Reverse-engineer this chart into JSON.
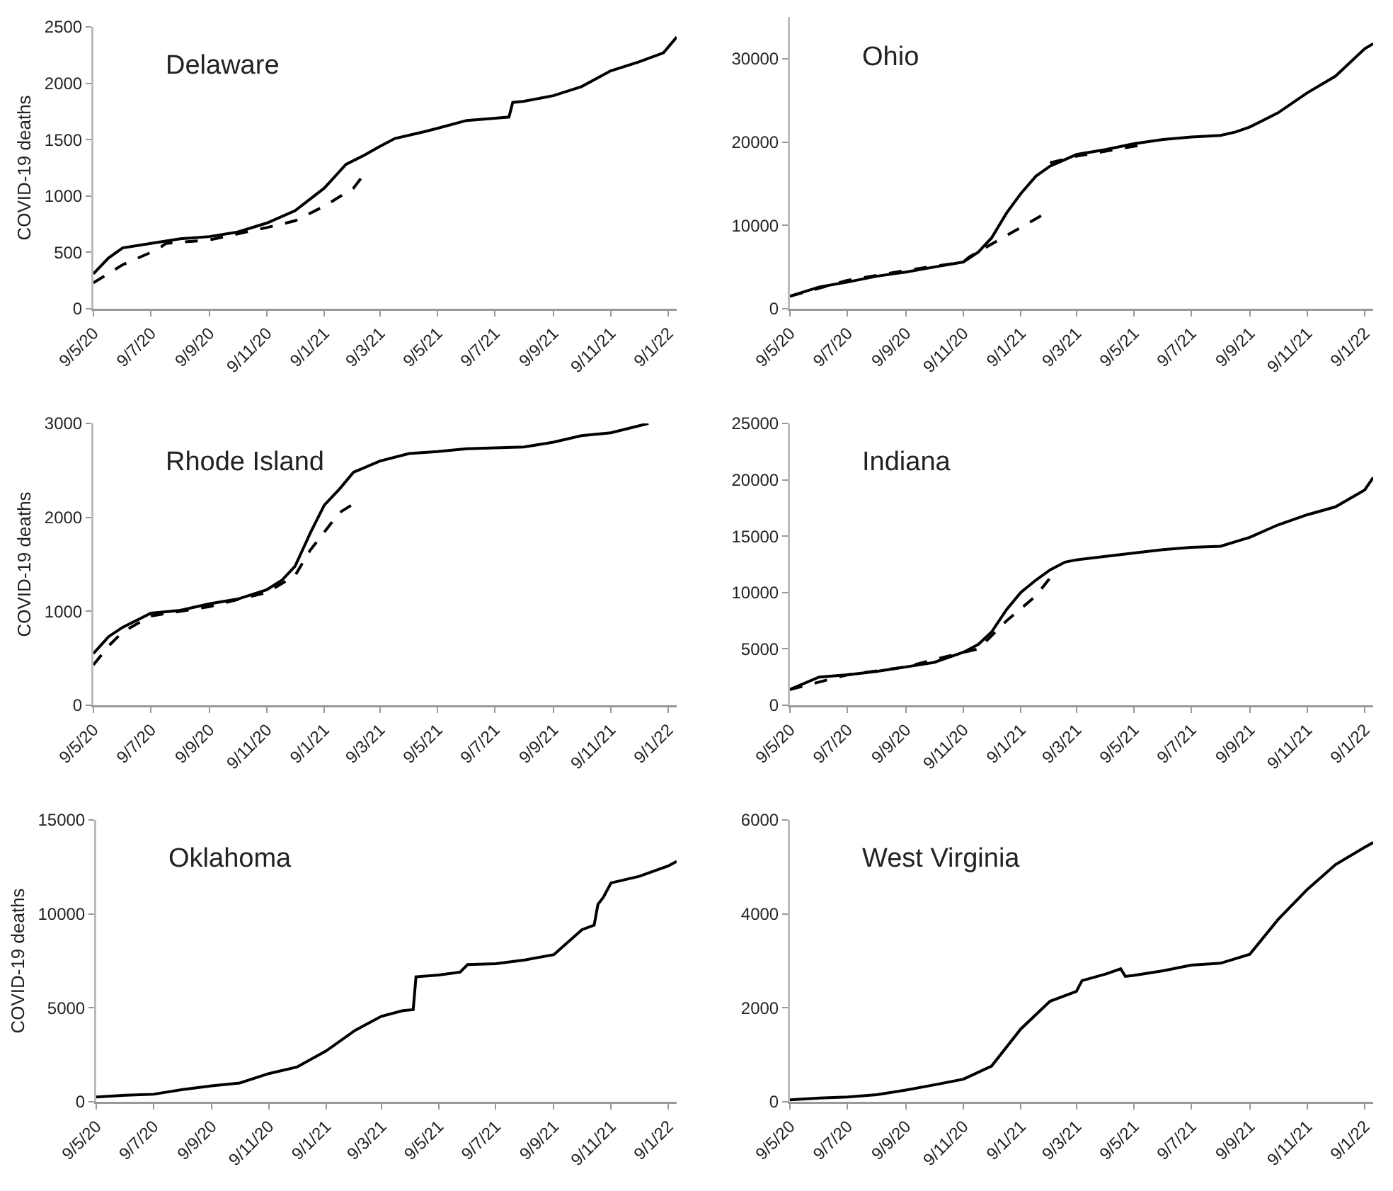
{
  "chart_data": [
    {
      "type": "line",
      "title": "Delaware",
      "ylabel": "COVID-19 deaths",
      "xlim": [
        "2020-05-09",
        "2022-01-18"
      ],
      "xticks": [
        {
          "value": "2020-05-09",
          "label": "9/5/20"
        },
        {
          "value": "2020-07-09",
          "label": "9/7/20"
        },
        {
          "value": "2020-09-09",
          "label": "9/9/20"
        },
        {
          "value": "2020-11-09",
          "label": "9/11/20"
        },
        {
          "value": "2021-01-09",
          "label": "9/1/21"
        },
        {
          "value": "2021-03-09",
          "label": "9/3/21"
        },
        {
          "value": "2021-05-09",
          "label": "9/5/21"
        },
        {
          "value": "2021-07-09",
          "label": "9/7/21"
        },
        {
          "value": "2021-09-09",
          "label": "9/9/21"
        },
        {
          "value": "2021-11-09",
          "label": "9/11/21"
        },
        {
          "value": "2022-01-09",
          "label": "9/1/22"
        }
      ],
      "ylim": [
        0,
        2500
      ],
      "yticks": [
        0,
        500,
        1000,
        1500,
        2000,
        2500
      ],
      "grid": false,
      "marker": "none",
      "series": [
        {
          "color": "#000000",
          "line_style": "solid",
          "x": [
            "2020-05-09",
            "2020-05-25",
            "2020-06-09",
            "2020-07-09",
            "2020-08-09",
            "2020-09-09",
            "2020-10-09",
            "2020-11-09",
            "2020-12-09",
            "2021-01-09",
            "2021-02-01",
            "2021-02-20",
            "2021-03-09",
            "2021-03-25",
            "2021-04-25",
            "2021-05-09",
            "2021-06-09",
            "2021-07-09",
            "2021-07-24",
            "2021-07-28",
            "2021-08-09",
            "2021-09-09",
            "2021-10-09",
            "2021-11-09",
            "2021-12-09",
            "2022-01-04",
            "2022-01-18"
          ],
          "values": [
            310,
            450,
            540,
            580,
            620,
            640,
            680,
            760,
            870,
            1070,
            1280,
            1360,
            1440,
            1510,
            1570,
            1600,
            1670,
            1690,
            1700,
            1830,
            1840,
            1890,
            1970,
            2110,
            2190,
            2270,
            2410
          ]
        },
        {
          "color": "#000000",
          "line_style": "dashed",
          "x": [
            "2020-05-09",
            "2020-06-09",
            "2020-07-09",
            "2020-07-20",
            "2020-07-25",
            "2020-09-09",
            "2020-11-09",
            "2020-12-09",
            "2021-01-09",
            "2021-02-09",
            "2021-02-20"
          ],
          "values": [
            230,
            390,
            500,
            550,
            580,
            610,
            720,
            780,
            910,
            1070,
            1190
          ]
        }
      ]
    },
    {
      "type": "line",
      "title": "Ohio",
      "xlim": [
        "2020-05-09",
        "2022-01-18"
      ],
      "xticks": [
        {
          "value": "2020-05-09",
          "label": "9/5/20"
        },
        {
          "value": "2020-07-09",
          "label": "9/7/20"
        },
        {
          "value": "2020-09-09",
          "label": "9/9/20"
        },
        {
          "value": "2020-11-09",
          "label": "9/11/20"
        },
        {
          "value": "2021-01-09",
          "label": "9/1/21"
        },
        {
          "value": "2021-03-09",
          "label": "9/3/21"
        },
        {
          "value": "2021-05-09",
          "label": "9/5/21"
        },
        {
          "value": "2021-07-09",
          "label": "9/7/21"
        },
        {
          "value": "2021-09-09",
          "label": "9/9/21"
        },
        {
          "value": "2021-11-09",
          "label": "9/11/21"
        },
        {
          "value": "2022-01-09",
          "label": "9/1/22"
        }
      ],
      "ylim": [
        0,
        35000
      ],
      "yticks": [
        0,
        10000,
        20000,
        30000
      ],
      "grid": false,
      "marker": "none",
      "series": [
        {
          "color": "#000000",
          "line_style": "solid",
          "x": [
            "2020-05-09",
            "2020-06-09",
            "2020-07-09",
            "2020-08-09",
            "2020-09-09",
            "2020-10-09",
            "2020-11-09",
            "2020-11-25",
            "2020-12-09",
            "2020-12-25",
            "2021-01-09",
            "2021-01-25",
            "2021-02-09",
            "2021-02-25",
            "2021-03-09",
            "2021-04-09",
            "2021-05-09",
            "2021-06-09",
            "2021-07-09",
            "2021-08-09",
            "2021-08-25",
            "2021-09-09",
            "2021-10-09",
            "2021-11-09",
            "2021-12-09",
            "2022-01-09",
            "2022-01-18"
          ],
          "values": [
            1500,
            2600,
            3200,
            3900,
            4400,
            5000,
            5600,
            6800,
            8500,
            11500,
            13800,
            15900,
            17100,
            17900,
            18500,
            19100,
            19800,
            20300,
            20600,
            20800,
            21200,
            21800,
            23500,
            25900,
            27900,
            31200,
            31800
          ]
        },
        {
          "color": "#000000",
          "line_style": "dashed",
          "x": [
            "2020-05-09",
            "2020-07-09",
            "2020-09-09",
            "2020-11-09",
            "2020-11-15",
            "2021-02-05"
          ],
          "values": [
            1500,
            3400,
            4600,
            5600,
            6200,
            11500
          ]
        },
        {
          "color": "#000000",
          "line_style": "dashed",
          "x": [
            "2021-02-09",
            "2021-03-09",
            "2021-04-09",
            "2021-05-15"
          ],
          "values": [
            17500,
            18300,
            18900,
            19600
          ]
        }
      ]
    },
    {
      "type": "line",
      "title": "Rhode Island",
      "ylabel": "COVID-19 deaths",
      "xlim": [
        "2020-05-09",
        "2022-01-18"
      ],
      "xticks": [
        {
          "value": "2020-05-09",
          "label": "9/5/20"
        },
        {
          "value": "2020-07-09",
          "label": "9/7/20"
        },
        {
          "value": "2020-09-09",
          "label": "9/9/20"
        },
        {
          "value": "2020-11-09",
          "label": "9/11/20"
        },
        {
          "value": "2021-01-09",
          "label": "9/1/21"
        },
        {
          "value": "2021-03-09",
          "label": "9/3/21"
        },
        {
          "value": "2021-05-09",
          "label": "9/5/21"
        },
        {
          "value": "2021-07-09",
          "label": "9/7/21"
        },
        {
          "value": "2021-09-09",
          "label": "9/9/21"
        },
        {
          "value": "2021-11-09",
          "label": "9/11/21"
        },
        {
          "value": "2022-01-09",
          "label": "9/1/22"
        }
      ],
      "ylim": [
        0,
        3000
      ],
      "yticks": [
        0,
        1000,
        2000,
        3000
      ],
      "grid": false,
      "marker": "none",
      "series": [
        {
          "color": "#000000",
          "line_style": "solid",
          "x": [
            "2020-05-09",
            "2020-05-25",
            "2020-06-09",
            "2020-07-09",
            "2020-08-09",
            "2020-09-09",
            "2020-10-09",
            "2020-11-09",
            "2020-11-25",
            "2020-12-09",
            "2020-12-25",
            "2021-01-09",
            "2021-01-25",
            "2021-02-09",
            "2021-03-09",
            "2021-04-09",
            "2021-05-09",
            "2021-06-09",
            "2021-07-09",
            "2021-08-09",
            "2021-09-09",
            "2021-10-09",
            "2021-11-09",
            "2021-12-19"
          ],
          "values": [
            550,
            730,
            830,
            980,
            1010,
            1080,
            1130,
            1230,
            1330,
            1480,
            1830,
            2130,
            2300,
            2480,
            2600,
            2680,
            2700,
            2730,
            2740,
            2750,
            2800,
            2870,
            2900,
            3000
          ]
        },
        {
          "color": "#000000",
          "line_style": "dashed",
          "x": [
            "2020-05-09",
            "2020-05-25",
            "2020-06-09",
            "2020-07-09",
            "2020-09-09",
            "2020-11-09",
            "2020-12-09",
            "2020-12-25",
            "2021-01-25",
            "2021-02-10"
          ],
          "values": [
            430,
            630,
            780,
            950,
            1050,
            1200,
            1380,
            1650,
            2050,
            2150
          ]
        }
      ]
    },
    {
      "type": "line",
      "title": "Indiana",
      "xlim": [
        "2020-05-09",
        "2022-01-18"
      ],
      "xticks": [
        {
          "value": "2020-05-09",
          "label": "9/5/20"
        },
        {
          "value": "2020-07-09",
          "label": "9/7/20"
        },
        {
          "value": "2020-09-09",
          "label": "9/9/20"
        },
        {
          "value": "2020-11-09",
          "label": "9/11/20"
        },
        {
          "value": "2021-01-09",
          "label": "9/1/21"
        },
        {
          "value": "2021-03-09",
          "label": "9/3/21"
        },
        {
          "value": "2021-05-09",
          "label": "9/5/21"
        },
        {
          "value": "2021-07-09",
          "label": "9/7/21"
        },
        {
          "value": "2021-09-09",
          "label": "9/9/21"
        },
        {
          "value": "2021-11-09",
          "label": "9/11/21"
        },
        {
          "value": "2022-01-09",
          "label": "9/1/22"
        }
      ],
      "ylim": [
        0,
        25000
      ],
      "yticks": [
        0,
        5000,
        10000,
        15000,
        20000,
        25000
      ],
      "grid": false,
      "marker": "none",
      "series": [
        {
          "color": "#000000",
          "line_style": "solid",
          "x": [
            "2020-05-09",
            "2020-06-09",
            "2020-07-09",
            "2020-08-09",
            "2020-09-09",
            "2020-10-09",
            "2020-11-09",
            "2020-11-25",
            "2020-12-09",
            "2020-12-25",
            "2021-01-09",
            "2021-01-25",
            "2021-02-09",
            "2021-02-25",
            "2021-03-09",
            "2021-04-09",
            "2021-05-09",
            "2021-06-09",
            "2021-07-09",
            "2021-08-09",
            "2021-09-09",
            "2021-10-09",
            "2021-11-09",
            "2021-12-09",
            "2022-01-09",
            "2022-01-18"
          ],
          "values": [
            1400,
            2500,
            2700,
            3000,
            3400,
            3800,
            4700,
            5400,
            6500,
            8500,
            10000,
            11100,
            12000,
            12700,
            12900,
            13200,
            13500,
            13800,
            14000,
            14100,
            14900,
            16000,
            16900,
            17600,
            19100,
            20200
          ]
        },
        {
          "color": "#000000",
          "line_style": "dashed",
          "x": [
            "2020-05-09",
            "2020-07-09",
            "2020-09-09",
            "2020-11-09",
            "2020-11-25",
            "2020-12-25",
            "2021-01-25",
            "2021-02-10"
          ],
          "values": [
            1400,
            2700,
            3400,
            4700,
            5000,
            7500,
            9700,
            11400
          ]
        }
      ]
    },
    {
      "type": "line",
      "title": "Oklahoma",
      "ylabel": "COVID-19 deaths",
      "xlim": [
        "2020-05-09",
        "2022-01-18"
      ],
      "xticks": [
        {
          "value": "2020-05-09",
          "label": "9/5/20"
        },
        {
          "value": "2020-07-09",
          "label": "9/7/20"
        },
        {
          "value": "2020-09-09",
          "label": "9/9/20"
        },
        {
          "value": "2020-11-09",
          "label": "9/11/20"
        },
        {
          "value": "2021-01-09",
          "label": "9/1/21"
        },
        {
          "value": "2021-03-09",
          "label": "9/3/21"
        },
        {
          "value": "2021-05-09",
          "label": "9/5/21"
        },
        {
          "value": "2021-07-09",
          "label": "9/7/21"
        },
        {
          "value": "2021-09-09",
          "label": "9/9/21"
        },
        {
          "value": "2021-11-09",
          "label": "9/11/21"
        },
        {
          "value": "2022-01-09",
          "label": "9/1/22"
        }
      ],
      "ylim": [
        0,
        15000
      ],
      "yticks": [
        0,
        5000,
        10000,
        15000
      ],
      "grid": false,
      "marker": "none",
      "series": [
        {
          "color": "#000000",
          "line_style": "solid",
          "x": [
            "2020-05-09",
            "2020-06-09",
            "2020-07-09",
            "2020-08-09",
            "2020-09-09",
            "2020-10-09",
            "2020-11-09",
            "2020-12-09",
            "2021-01-09",
            "2021-02-09",
            "2021-03-09",
            "2021-04-01",
            "2021-04-12",
            "2021-04-15",
            "2021-05-09",
            "2021-06-01",
            "2021-06-09",
            "2021-07-09",
            "2021-08-09",
            "2021-09-09",
            "2021-10-09",
            "2021-10-22",
            "2021-10-26",
            "2021-11-01",
            "2021-11-09",
            "2021-12-09",
            "2022-01-09",
            "2022-01-18"
          ],
          "values": [
            250,
            350,
            400,
            650,
            850,
            1000,
            1500,
            1850,
            2700,
            3800,
            4550,
            4850,
            4900,
            6650,
            6750,
            6900,
            7300,
            7350,
            7550,
            7830,
            9160,
            9400,
            10500,
            10900,
            11650,
            12000,
            12550,
            12800
          ]
        }
      ]
    },
    {
      "type": "line",
      "title": "West Virginia",
      "xlim": [
        "2020-05-09",
        "2022-01-18"
      ],
      "xticks": [
        {
          "value": "2020-05-09",
          "label": "9/5/20"
        },
        {
          "value": "2020-07-09",
          "label": "9/7/20"
        },
        {
          "value": "2020-09-09",
          "label": "9/9/20"
        },
        {
          "value": "2020-11-09",
          "label": "9/11/20"
        },
        {
          "value": "2021-01-09",
          "label": "9/1/21"
        },
        {
          "value": "2021-03-09",
          "label": "9/3/21"
        },
        {
          "value": "2021-05-09",
          "label": "9/5/21"
        },
        {
          "value": "2021-07-09",
          "label": "9/7/21"
        },
        {
          "value": "2021-09-09",
          "label": "9/9/21"
        },
        {
          "value": "2021-11-09",
          "label": "9/11/21"
        },
        {
          "value": "2022-01-09",
          "label": "9/1/22"
        }
      ],
      "ylim": [
        0,
        6000
      ],
      "yticks": [
        0,
        2000,
        4000,
        6000
      ],
      "grid": false,
      "marker": "none",
      "series": [
        {
          "color": "#000000",
          "line_style": "solid",
          "x": [
            "2020-05-09",
            "2020-06-09",
            "2020-07-09",
            "2020-08-09",
            "2020-09-09",
            "2020-10-09",
            "2020-11-09",
            "2020-12-09",
            "2021-01-09",
            "2021-02-09",
            "2021-03-09",
            "2021-03-15",
            "2021-04-09",
            "2021-04-25",
            "2021-04-30",
            "2021-05-09",
            "2021-06-09",
            "2021-07-09",
            "2021-08-09",
            "2021-09-09",
            "2021-10-09",
            "2021-11-09",
            "2021-12-09",
            "2022-01-09",
            "2022-01-18"
          ],
          "values": [
            40,
            80,
            100,
            150,
            250,
            360,
            480,
            760,
            1550,
            2140,
            2350,
            2580,
            2720,
            2830,
            2670,
            2690,
            2790,
            2910,
            2950,
            3140,
            3880,
            4520,
            5050,
            5420,
            5520
          ]
        }
      ]
    }
  ]
}
